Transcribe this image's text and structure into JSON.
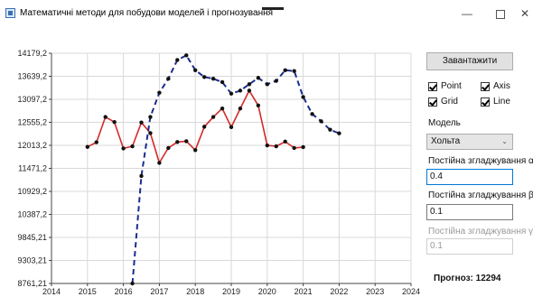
{
  "window": {
    "title": "Математичні методи для побудови моделей і прогнозування",
    "buttons": {
      "minimize": "—",
      "close": "✕"
    }
  },
  "controls": {
    "load_button": "Завантажити",
    "checkboxes": [
      {
        "label": "Point",
        "checked": true
      },
      {
        "label": "Axis",
        "checked": true
      },
      {
        "label": "Grid",
        "checked": true
      },
      {
        "label": "Line",
        "checked": true
      }
    ],
    "model_label": "Модель",
    "model_value": "Хольта",
    "alpha_label": "Постійна згладжування α",
    "alpha_value": "0.4",
    "beta_label": "Постійна згладжування β",
    "beta_value": "0.1",
    "gamma_label": "Постійна згладжування γ",
    "gamma_value": "0.1",
    "forecast_label": "Прогноз:",
    "forecast_value": "12294"
  },
  "chart_data": {
    "type": "line",
    "xlim": [
      2014,
      2024
    ],
    "ylim": [
      8761.21,
      14179.2
    ],
    "x_ticks": [
      "2014",
      "2015",
      "2016",
      "2017",
      "2018",
      "2019",
      "2020",
      "2021",
      "2022",
      "2023",
      "2024"
    ],
    "y_ticks": [
      "8761,21",
      "9303,21",
      "9845,21",
      "10387,2",
      "10929,2",
      "11471,2",
      "12013,2",
      "12555,2",
      "13097,2",
      "13639,2",
      "14179,2"
    ],
    "grid": true,
    "series": [
      {
        "color": "#d42a2a",
        "dashed": false,
        "points": [
          [
            2015.0,
            11975
          ],
          [
            2015.25,
            12085
          ],
          [
            2015.5,
            12680
          ],
          [
            2015.75,
            12560
          ],
          [
            2016.0,
            11940
          ],
          [
            2016.25,
            11990
          ],
          [
            2016.5,
            12550
          ],
          [
            2016.75,
            12300
          ],
          [
            2017.0,
            11600
          ],
          [
            2017.25,
            11950
          ],
          [
            2017.5,
            12090
          ],
          [
            2017.75,
            12110
          ],
          [
            2018.0,
            11900
          ],
          [
            2018.25,
            12450
          ],
          [
            2018.5,
            12680
          ],
          [
            2018.75,
            12880
          ],
          [
            2019.0,
            12440
          ],
          [
            2019.25,
            12880
          ],
          [
            2019.5,
            13300
          ],
          [
            2019.75,
            12950
          ],
          [
            2020.0,
            12010
          ],
          [
            2020.25,
            11990
          ],
          [
            2020.5,
            12100
          ],
          [
            2020.75,
            11950
          ],
          [
            2021.0,
            11970
          ]
        ]
      },
      {
        "color": "#1a2d8c",
        "dashed": true,
        "points": [
          [
            2016.25,
            8761.21
          ],
          [
            2016.5,
            11290
          ],
          [
            2016.75,
            12680
          ],
          [
            2017.0,
            13250
          ],
          [
            2017.25,
            13580
          ],
          [
            2017.5,
            14020
          ],
          [
            2017.75,
            14130
          ],
          [
            2018.0,
            13780
          ],
          [
            2018.25,
            13620
          ],
          [
            2018.5,
            13580
          ],
          [
            2018.75,
            13500
          ],
          [
            2019.0,
            13230
          ],
          [
            2019.25,
            13300
          ],
          [
            2019.5,
            13450
          ],
          [
            2019.75,
            13600
          ],
          [
            2020.0,
            13450
          ],
          [
            2020.25,
            13530
          ],
          [
            2020.5,
            13780
          ],
          [
            2020.75,
            13760
          ],
          [
            2021.0,
            13150
          ],
          [
            2021.25,
            12750
          ],
          [
            2021.5,
            12580
          ],
          [
            2021.75,
            12380
          ],
          [
            2022.0,
            12294
          ]
        ]
      }
    ]
  }
}
